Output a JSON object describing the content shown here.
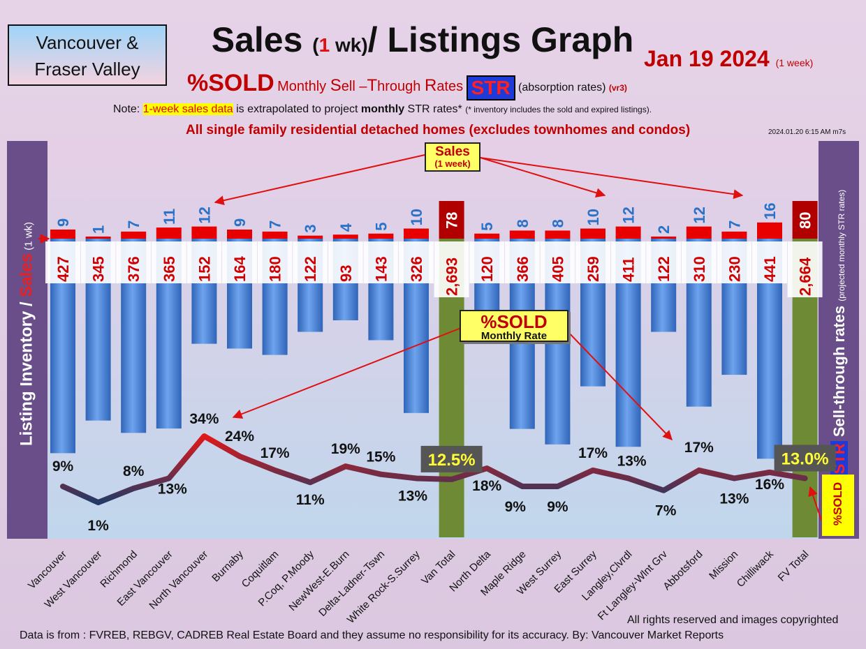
{
  "header": {
    "region_line1": "Vancouver &",
    "region_line2": "Fraser Valley",
    "title_a": "Sales ",
    "title_paren_open": "(",
    "title_one": "1",
    "title_paren_close": " wk)",
    "title_b": "/ Listings Graph",
    "date_main": "Jan 19  2024",
    "date_small": "(1 week)",
    "sub_pct": "%SOLD",
    "sub_monthly_s": "S",
    "sub_monthly_a": "Monthly ",
    "sub_monthly_b": "ell –",
    "sub_monthly_t": "T",
    "sub_monthly_c": "hrough ",
    "sub_monthly_r": "R",
    "sub_monthly_d": "ates",
    "sub_str": "STR",
    "sub_abs": "(absorption rates)",
    "sub_vr": "(vr3)",
    "note_a": "Note: ",
    "note_hl": "1-week sales data",
    "note_b": " is extrapolated to project ",
    "note_bold": "monthly",
    "note_c": " STR rates* ",
    "note_small": "(* inventory includes the sold and expired listings).",
    "single_family": "All single family residential detached homes (excludes townhomes and condos)",
    "stamp": "2024.01.20 6:15 AM m7s"
  },
  "side": {
    "left_a": "Listing Inventory / ",
    "left_sales": "Sales",
    "left_small": " (1 wk)",
    "right_a": "Sell-through rates",
    "right_str": "STR",
    "right_small": "(projected monthly STR rates)",
    "badge": "%SOLD"
  },
  "callouts": {
    "sales_main": "Sales",
    "sales_small": "(1 week)",
    "sold_main": "%SOLD",
    "sold_small": "Monthly Rate"
  },
  "footer": {
    "rights": "All rights reserved and  images copyrighted",
    "source": "Data is from : FVREB, REBGV, CADREB Real Estate Board and they assume no responsibility for its accuracy. By: Vancouver Market Reports"
  },
  "colors": {
    "sales_bar": "#e80000",
    "inventory_bar": "#4a86d8",
    "total_bar": "#6f8a35",
    "total_sales_bar": "#b00000",
    "line_high": "#e01818",
    "line_low": "#233a66"
  },
  "chart_data": {
    "type": "bar",
    "categories": [
      "Vancouver",
      "West Vancouver",
      "Richmond",
      "East Vancouver",
      "North Vancouver",
      "Burnaby",
      "Coquitlam",
      "P.Coq, P.Moody",
      "NewWest-E.Burn",
      "Delta-Ladner-Tswn",
      "White Rock-S.Surrey",
      "Van Total",
      "North Delta",
      "Maple Ridge",
      "West Surrey",
      "East Surrey",
      "Langley,Clvrdl",
      "Ft Langley-Wlnt Grv",
      "Abbotsford",
      "Mission",
      "Chilliwack",
      "FV Total"
    ],
    "series": [
      {
        "values": [
          9,
          1,
          7,
          11,
          12,
          9,
          7,
          3,
          4,
          5,
          10,
          78,
          5,
          8,
          8,
          10,
          12,
          2,
          12,
          7,
          16,
          80
        ]
      },
      {
        "values": [
          427,
          345,
          376,
          365,
          152,
          164,
          180,
          122,
          93,
          143,
          326,
          2693,
          120,
          366,
          405,
          259,
          411,
          122,
          310,
          230,
          441,
          2664
        ]
      },
      {
        "values": [
          9,
          1,
          8,
          13,
          34,
          24,
          17,
          11,
          19,
          15,
          13,
          12.5,
          18,
          9,
          9,
          17,
          13,
          7,
          17,
          13,
          16,
          13.0
        ]
      }
    ],
    "inventory_labels": [
      "427",
      "345",
      "376",
      "365",
      "152",
      "164",
      "180",
      "122",
      "93",
      "143",
      "326",
      "2,693",
      "120",
      "366",
      "405",
      "259",
      "411",
      "122",
      "310",
      "230",
      "441",
      "2,664"
    ],
    "pct_labels": [
      "9%",
      "1%",
      "8%",
      "13%",
      "34%",
      "24%",
      "17%",
      "11%",
      "19%",
      "15%",
      "13%",
      "12.5%",
      "18%",
      "9%",
      "9%",
      "17%",
      "13%",
      "7%",
      "17%",
      "13%",
      "16%",
      "13.0%"
    ],
    "total_indices": [
      11,
      21
    ]
  }
}
